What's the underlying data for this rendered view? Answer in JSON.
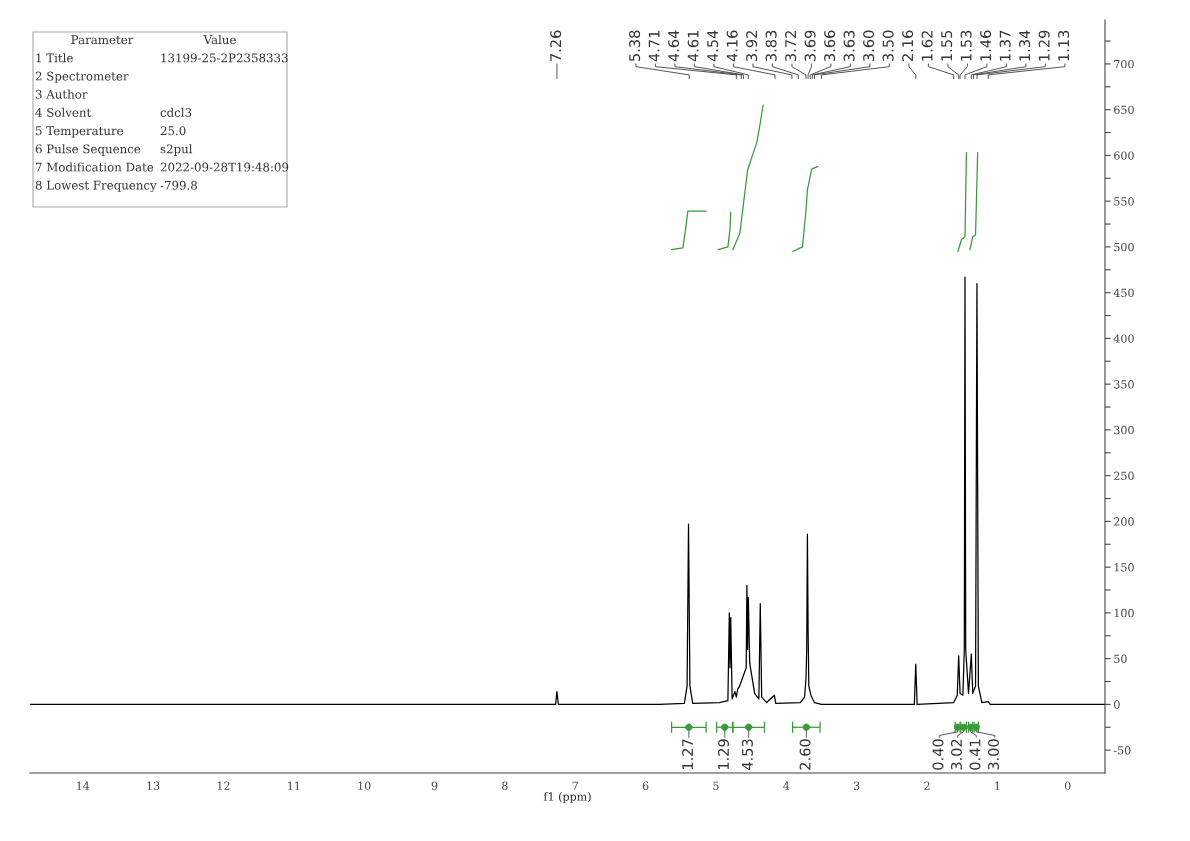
{
  "chart_data": {
    "type": "line",
    "xlabel": "f1 (ppm)",
    "xlim": [
      14.75,
      -0.53
    ],
    "ylim": [
      -75,
      748
    ],
    "xticks": [
      0,
      1,
      2,
      3,
      4,
      5,
      6,
      7,
      8,
      9,
      10,
      11,
      12,
      13,
      14
    ],
    "yticks": [
      -50,
      {
        "value": -25,
        "label": null
      },
      0,
      {
        "value": 25,
        "label": null
      },
      50,
      {
        "value": 75,
        "label": null
      },
      100,
      {
        "value": 125,
        "label": null
      },
      150,
      {
        "value": 175,
        "label": null
      },
      200,
      {
        "value": 225,
        "label": null
      },
      250,
      {
        "value": 275,
        "label": null
      },
      300,
      {
        "value": 325,
        "label": null
      },
      350,
      {
        "value": 375,
        "label": null
      },
      400,
      {
        "value": 425,
        "label": null
      },
      450,
      {
        "value": 475,
        "label": null
      },
      500,
      {
        "value": 525,
        "label": null
      },
      550,
      {
        "value": 575,
        "label": null
      },
      600,
      {
        "value": 625,
        "label": null
      },
      650,
      {
        "value": 675,
        "label": null
      },
      700,
      {
        "value": 725,
        "label": null
      }
    ],
    "grid": false,
    "series": [
      {
        "color": "#000000",
        "x": [
          14.75,
          7.35,
          7.28,
          7.26,
          7.24,
          5.8,
          5.45,
          5.41,
          5.39,
          5.37,
          5.33,
          4.95,
          4.83,
          4.81,
          4.8,
          4.79,
          4.77,
          4.73,
          4.71,
          4.69,
          4.67,
          4.64,
          4.57,
          4.56,
          4.55,
          4.54,
          4.52,
          4.45,
          4.39,
          4.37,
          4.35,
          4.28,
          4.17,
          4.15,
          3.8,
          3.74,
          3.72,
          3.71,
          3.7,
          3.69,
          3.68,
          3.65,
          3.6,
          3.5,
          2.18,
          2.16,
          2.14,
          1.62,
          1.57,
          1.55,
          1.53,
          1.49,
          1.47,
          1.46,
          1.45,
          1.41,
          1.37,
          1.35,
          1.31,
          1.29,
          1.27,
          1.22,
          1.13,
          1.1,
          -0.53
        ],
        "values": [
          0,
          0,
          0,
          14,
          0,
          0,
          1,
          20,
          197,
          20,
          1,
          2,
          4,
          100,
          40,
          95,
          6,
          14,
          8,
          17,
          19,
          25,
          40,
          130,
          60,
          117,
          45,
          12,
          6,
          110,
          8,
          2,
          10,
          1,
          2,
          8,
          28,
          60,
          186,
          80,
          20,
          10,
          2,
          0,
          0,
          44,
          0,
          2,
          10,
          53,
          12,
          10,
          60,
          467,
          60,
          12,
          55,
          12,
          20,
          460,
          20,
          2,
          3,
          0,
          0
        ]
      },
      {
        "color": "#3a9a3a",
        "x": [
          5.63,
          5.47,
          5.43,
          5.4,
          5.14
        ],
        "values": [
          497,
          499,
          520,
          539,
          539
        ]
      },
      {
        "color": "#3a9a3a",
        "x": [
          4.97,
          4.83,
          4.8,
          4.79
        ],
        "values": [
          497,
          500,
          520,
          538
        ]
      },
      {
        "color": "#3a9a3a",
        "x": [
          4.76,
          4.66,
          4.55,
          4.42,
          4.38,
          4.33
        ],
        "values": [
          497,
          515,
          584,
          614,
          631,
          655
        ]
      },
      {
        "color": "#3a9a3a",
        "x": [
          3.91,
          3.77,
          3.72,
          3.7,
          3.64,
          3.55
        ],
        "values": [
          495,
          500,
          540,
          562,
          585,
          588
        ]
      },
      {
        "color": "#3a9a3a",
        "x": [
          1.56,
          1.51,
          1.46,
          1.44
        ],
        "values": [
          495,
          508,
          511,
          603
        ]
      },
      {
        "color": "#3a9a3a",
        "x": [
          1.39,
          1.35,
          1.31,
          1.28
        ],
        "values": [
          497,
          511,
          513,
          603
        ]
      },
      {
        "type": "scatter",
        "marker": "circle",
        "color": "#3a9a3a",
        "x": [
          5.385,
          4.875,
          4.535,
          3.715,
          1.565,
          1.48,
          1.38,
          1.3
        ],
        "values": [
          -25,
          -25,
          -25,
          -25,
          -25,
          -25,
          -25,
          -25
        ],
        "xerrors": [
          [
            5.14,
            5.63
          ],
          [
            4.76,
            4.99
          ],
          [
            4.31,
            4.76
          ],
          [
            3.52,
            3.91
          ],
          [
            1.53,
            1.6
          ],
          [
            1.44,
            1.52
          ],
          [
            1.35,
            1.41
          ],
          [
            1.27,
            1.33
          ]
        ]
      }
    ],
    "annotations": [
      "Parameter",
      "Value",
      "1 Title",
      "13199-25-2P2358333",
      "2 Spectrometer",
      null,
      "3 Author",
      null,
      "4 Solvent",
      "cdcl3",
      "5 Temperature",
      "25.0",
      "6 Pulse Sequence",
      "s2pul",
      "7 Modification Date",
      "2022-09-28T19:48:09",
      "8 Lowest Frequency",
      "-799.8",
      {
        "text": "7.26",
        "x": 7.26
      },
      {
        "text": "5.38",
        "x": 5.38
      },
      {
        "text": "4.71",
        "x": 4.71
      },
      {
        "text": "4.64",
        "x": 4.64
      },
      {
        "text": "4.61",
        "x": 4.61
      },
      {
        "text": "4.54",
        "x": 4.54
      },
      {
        "text": "4.16",
        "x": 4.16
      },
      {
        "text": "3.92",
        "x": 3.92
      },
      {
        "text": "3.83",
        "x": 3.83
      },
      {
        "text": "3.72",
        "x": 3.72
      },
      {
        "text": "3.69",
        "x": 3.69
      },
      {
        "text": "3.66",
        "x": 3.66
      },
      {
        "text": "3.63",
        "x": 3.63
      },
      {
        "text": "3.60",
        "x": 3.6
      },
      {
        "text": "3.50",
        "x": 3.5
      },
      {
        "text": "2.16",
        "x": 2.16
      },
      {
        "text": "1.62",
        "x": 1.62
      },
      {
        "text": "1.55",
        "x": 1.55
      },
      {
        "text": "1.53",
        "x": 1.53
      },
      {
        "text": "1.46",
        "x": 1.46
      },
      {
        "text": "1.37",
        "x": 1.37
      },
      {
        "text": "1.34",
        "x": 1.34
      },
      {
        "text": "1.29",
        "x": 1.29
      },
      {
        "text": "1.13",
        "x": 1.13
      },
      {
        "text": "1.27",
        "x": 5.385,
        "y": -25
      },
      {
        "text": "1.29",
        "x": 4.875,
        "y": -25
      },
      {
        "text": "4.53",
        "x": 4.535,
        "y": -25
      },
      {
        "text": "2.60",
        "x": 3.715,
        "y": -25
      },
      {
        "text": "0.40",
        "x": 1.565,
        "y": -25
      },
      {
        "text": "3.02",
        "x": 1.48,
        "y": -25
      },
      {
        "text": "0.41",
        "x": 1.38,
        "y": -25
      },
      {
        "text": "3.00",
        "x": 1.3,
        "y": -25
      }
    ]
  }
}
